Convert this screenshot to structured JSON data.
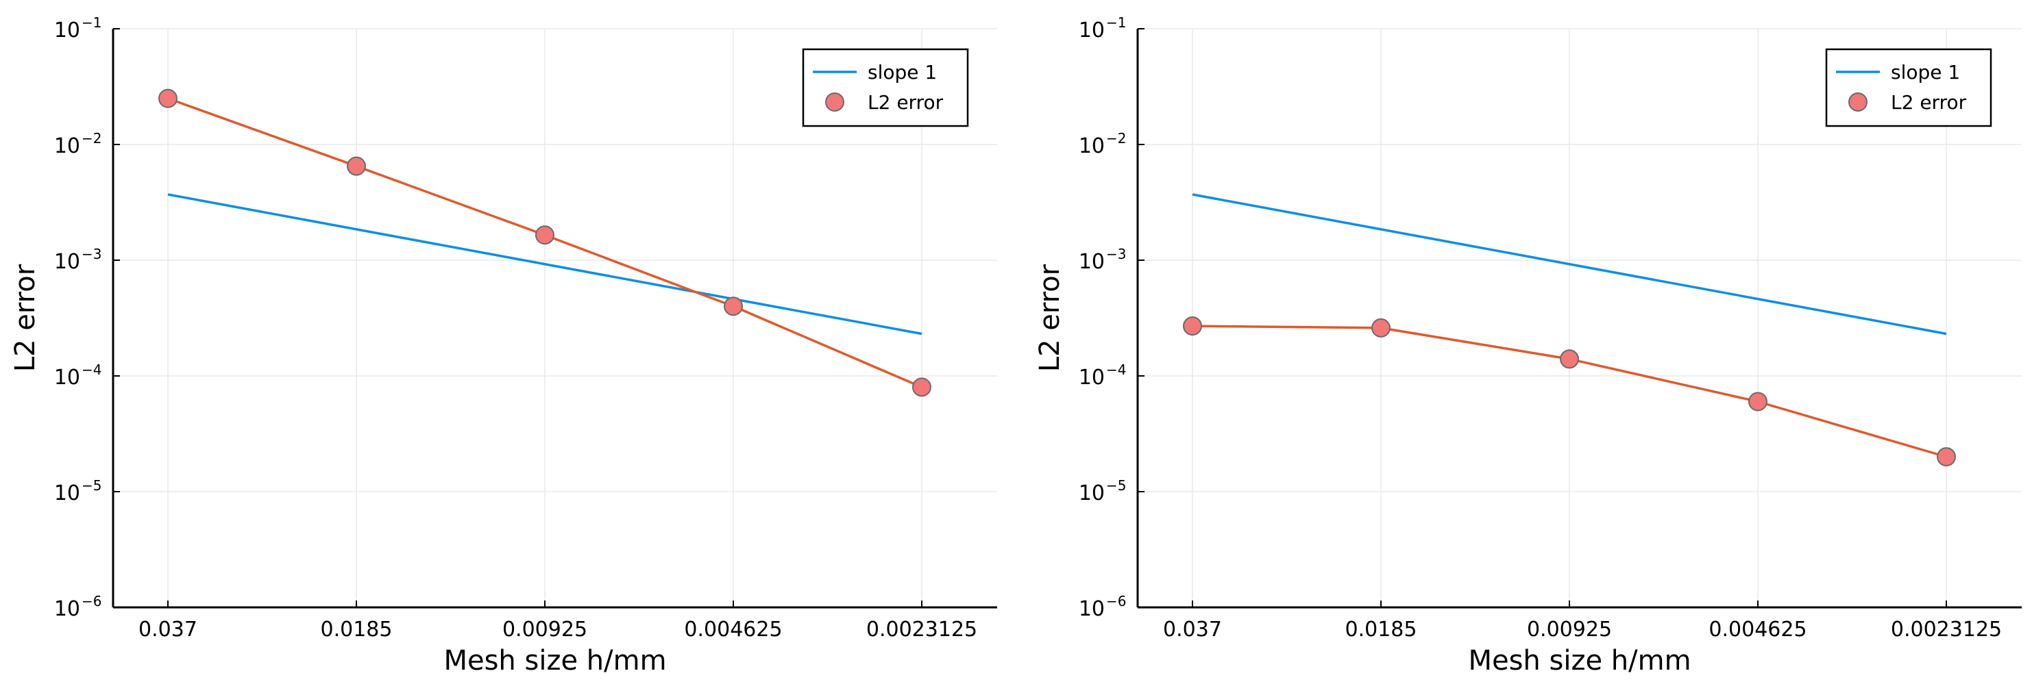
{
  "colors": {
    "slope_line": "#0d8ee8",
    "error_line": "#e05a2c",
    "error_marker": "#f27777",
    "marker_edge": "#6b6b6b",
    "grid": "#e8e8e8",
    "axis": "#000000"
  },
  "chart_data": [
    {
      "type": "line",
      "xscale": "log-reversed",
      "yscale": "log",
      "xlabel": "Mesh size h/mm",
      "ylabel": "L2 error",
      "x": [
        0.037,
        0.0185,
        0.00925,
        0.004625,
        0.0023125
      ],
      "xticks": [
        "0.037",
        "0.0185",
        "0.00925",
        "0.004625",
        "0.0023125"
      ],
      "ylim": [
        1e-06,
        0.1
      ],
      "yticks": [
        {
          "base": "10",
          "exp": "−1",
          "value": 0.1
        },
        {
          "base": "10",
          "exp": "−2",
          "value": 0.01
        },
        {
          "base": "10",
          "exp": "−3",
          "value": 0.001
        },
        {
          "base": "10",
          "exp": "−4",
          "value": 0.0001
        },
        {
          "base": "10",
          "exp": "−5",
          "value": 1e-05
        },
        {
          "base": "10",
          "exp": "−6",
          "value": 1e-06
        }
      ],
      "grid": true,
      "legend_position": "top-right",
      "series": [
        {
          "name": "slope 1",
          "style": "line",
          "values": [
            0.0037,
            0.00185,
            0.000925,
            0.0004625,
            0.00023125
          ]
        },
        {
          "name": "L2 error",
          "style": "line+markers",
          "values": [
            0.025,
            0.0065,
            0.00165,
            0.0004,
            8e-05
          ]
        }
      ]
    },
    {
      "type": "line",
      "xscale": "log-reversed",
      "yscale": "log",
      "xlabel": "Mesh size h/mm",
      "ylabel": "L2 error",
      "x": [
        0.037,
        0.0185,
        0.00925,
        0.004625,
        0.0023125
      ],
      "xticks": [
        "0.037",
        "0.0185",
        "0.00925",
        "0.004625",
        "0.0023125"
      ],
      "ylim": [
        1e-06,
        0.1
      ],
      "yticks": [
        {
          "base": "10",
          "exp": "−1",
          "value": 0.1
        },
        {
          "base": "10",
          "exp": "−2",
          "value": 0.01
        },
        {
          "base": "10",
          "exp": "−3",
          "value": 0.001
        },
        {
          "base": "10",
          "exp": "−4",
          "value": 0.0001
        },
        {
          "base": "10",
          "exp": "−5",
          "value": 1e-05
        },
        {
          "base": "10",
          "exp": "−6",
          "value": 1e-06
        }
      ],
      "grid": true,
      "legend_position": "top-right",
      "series": [
        {
          "name": "slope 1",
          "style": "line",
          "values": [
            0.0037,
            0.00185,
            0.000925,
            0.0004625,
            0.00023125
          ]
        },
        {
          "name": "L2 error",
          "style": "line+markers",
          "values": [
            0.00027,
            0.00026,
            0.00014,
            6e-05,
            2e-05
          ]
        }
      ]
    }
  ]
}
